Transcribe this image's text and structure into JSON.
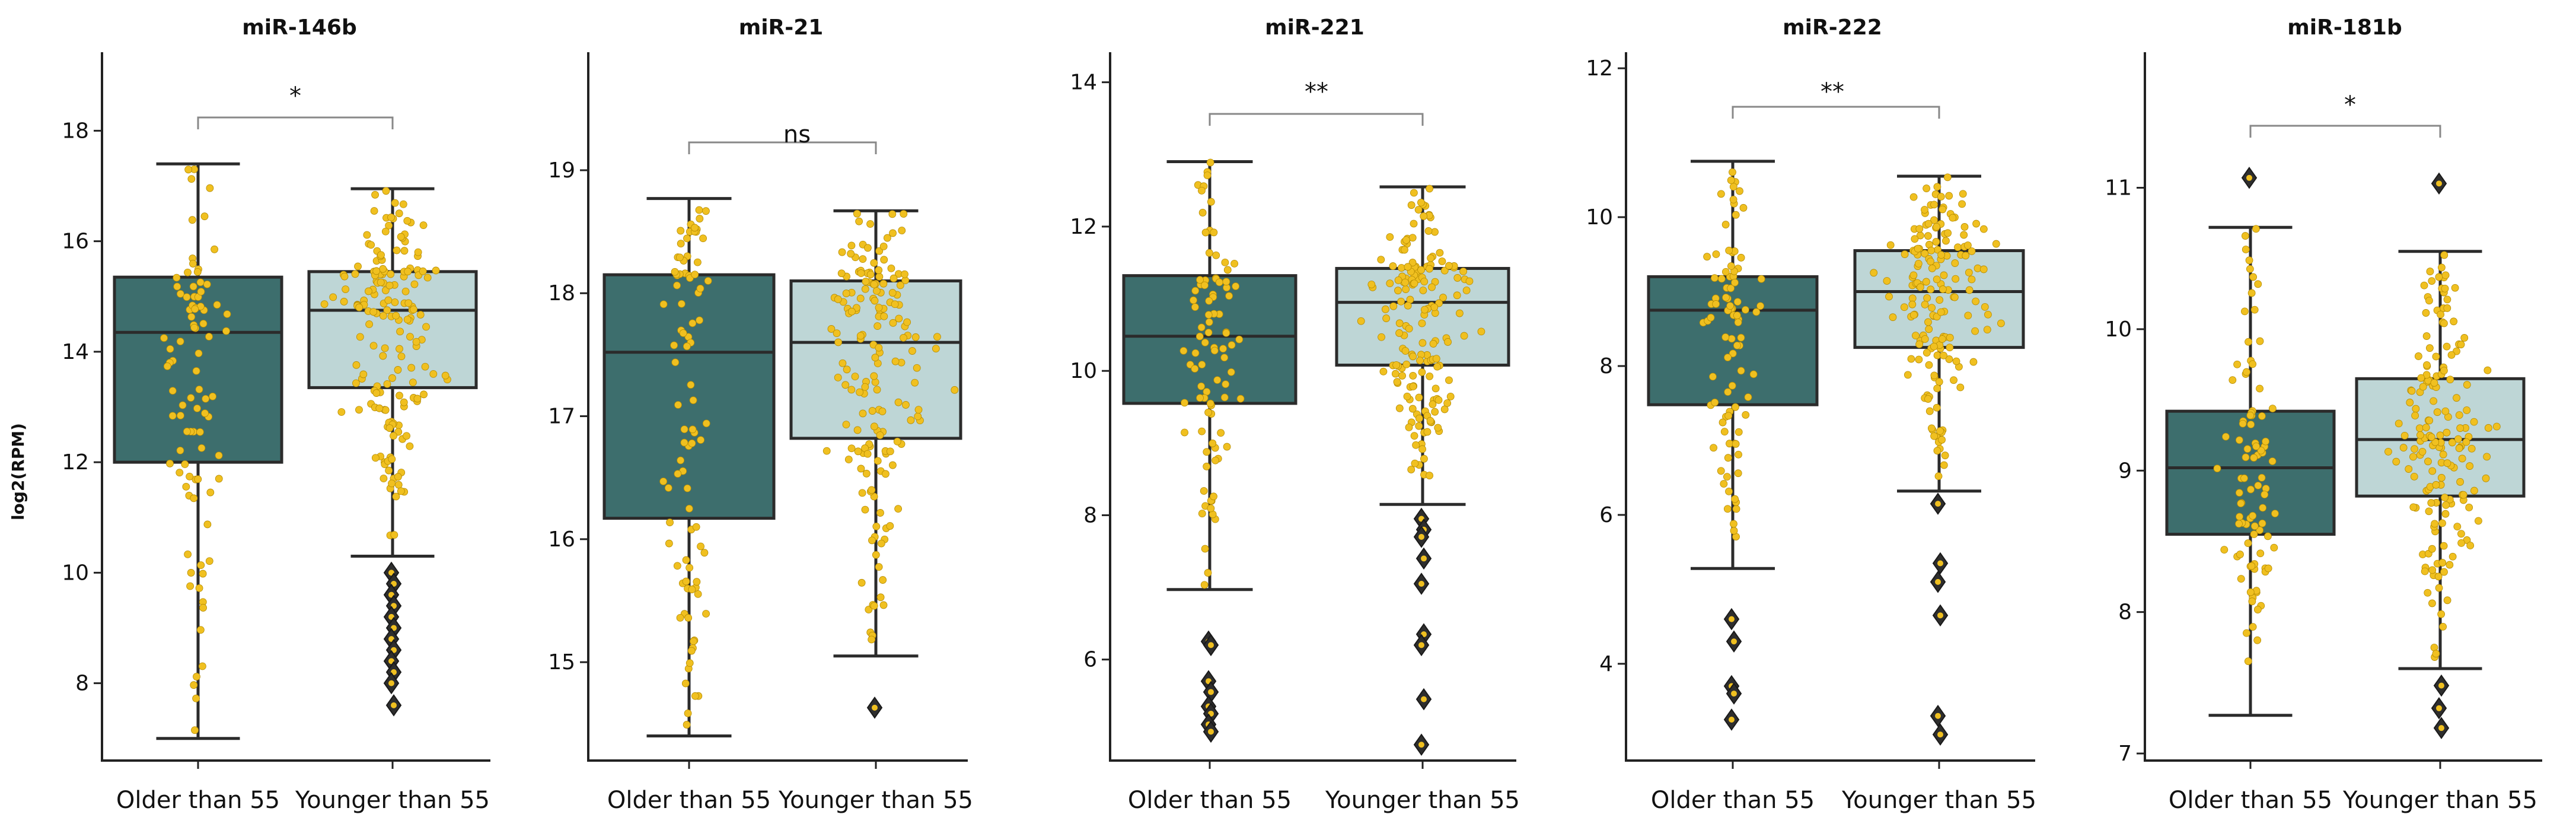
{
  "chart_data": [
    {
      "type": "box",
      "title": "miR-146b",
      "ylabel": "log2(RPM)",
      "ylim": [
        6.6,
        19.4
      ],
      "yticks": [
        8,
        10,
        12,
        14,
        16,
        18
      ],
      "categories": [
        "Older than 55",
        "Younger than 55"
      ],
      "colors": [
        "#3d6e6d",
        "#bed6d6"
      ],
      "boxes": [
        {
          "q1": 12.0,
          "median": 14.35,
          "q3": 15.35,
          "whisker_low": 7.0,
          "whisker_high": 17.4,
          "outliers": []
        },
        {
          "q1": 13.35,
          "median": 14.75,
          "q3": 15.45,
          "whisker_low": 10.3,
          "whisker_high": 16.95,
          "outliers": [
            10.0,
            9.8,
            9.6,
            9.4,
            9.2,
            9.0,
            8.8,
            8.6,
            8.4,
            8.2,
            8.0,
            7.6
          ]
        }
      ],
      "significance": "*"
    },
    {
      "type": "box",
      "title": "miR-21",
      "ylim": [
        14.2,
        19.95
      ],
      "yticks": [
        15,
        16,
        17,
        18,
        19
      ],
      "categories": [
        "Older than 55",
        "Younger than 55"
      ],
      "colors": [
        "#3d6e6d",
        "#bed6d6"
      ],
      "boxes": [
        {
          "q1": 16.17,
          "median": 17.52,
          "q3": 18.15,
          "whisker_low": 14.4,
          "whisker_high": 18.77,
          "outliers": []
        },
        {
          "q1": 16.82,
          "median": 17.6,
          "q3": 18.1,
          "whisker_low": 15.05,
          "whisker_high": 18.67,
          "outliers": [
            14.63
          ]
        }
      ],
      "significance": "ns"
    },
    {
      "type": "box",
      "title": "miR-221",
      "ylim": [
        4.6,
        14.4
      ],
      "yticks": [
        6,
        8,
        10,
        12,
        14
      ],
      "categories": [
        "Older than 55",
        "Younger than 55"
      ],
      "colors": [
        "#3d6e6d",
        "#bed6d6"
      ],
      "boxes": [
        {
          "q1": 9.55,
          "median": 10.48,
          "q3": 11.32,
          "whisker_low": 6.97,
          "whisker_high": 12.9,
          "outliers": [
            6.25,
            6.2,
            5.7,
            5.55,
            5.35,
            5.25,
            5.1,
            5.0
          ]
        },
        {
          "q1": 10.08,
          "median": 10.95,
          "q3": 11.42,
          "whisker_low": 8.15,
          "whisker_high": 12.55,
          "outliers": [
            7.95,
            7.8,
            7.7,
            7.4,
            7.05,
            6.35,
            6.2,
            5.45,
            4.82
          ]
        }
      ],
      "significance": "**"
    },
    {
      "type": "box",
      "title": "miR-222",
      "ylim": [
        2.7,
        12.2
      ],
      "yticks": [
        4,
        6,
        8,
        10,
        12
      ],
      "categories": [
        "Older than 55",
        "Younger than 55"
      ],
      "colors": [
        "#3d6e6d",
        "#bed6d6"
      ],
      "boxes": [
        {
          "q1": 7.48,
          "median": 8.75,
          "q3": 9.2,
          "whisker_low": 5.28,
          "whisker_high": 10.75,
          "outliers": [
            4.6,
            4.3,
            3.7,
            3.6,
            3.25
          ]
        },
        {
          "q1": 8.25,
          "median": 9.0,
          "q3": 9.55,
          "whisker_low": 6.32,
          "whisker_high": 10.55,
          "outliers": [
            6.15,
            5.35,
            5.1,
            4.65,
            3.3,
            3.05
          ]
        }
      ],
      "significance": "**"
    },
    {
      "type": "box",
      "title": "miR-181b",
      "ylim": [
        6.95,
        11.95
      ],
      "yticks": [
        7,
        8,
        9,
        10,
        11
      ],
      "categories": [
        "Older than 55",
        "Younger than 55"
      ],
      "colors": [
        "#3d6e6d",
        "#bed6d6"
      ],
      "boxes": [
        {
          "q1": 8.55,
          "median": 9.02,
          "q3": 9.42,
          "whisker_low": 7.27,
          "whisker_high": 10.72,
          "outliers": [
            11.07
          ]
        },
        {
          "q1": 8.82,
          "median": 9.22,
          "q3": 9.65,
          "whisker_low": 7.6,
          "whisker_high": 10.55,
          "outliers": [
            11.03,
            7.48,
            7.32,
            7.18
          ]
        }
      ],
      "significance": "*"
    }
  ],
  "point_color": "#f0c020",
  "line_color": "#2b2b2b",
  "bracket_color": "#888888"
}
